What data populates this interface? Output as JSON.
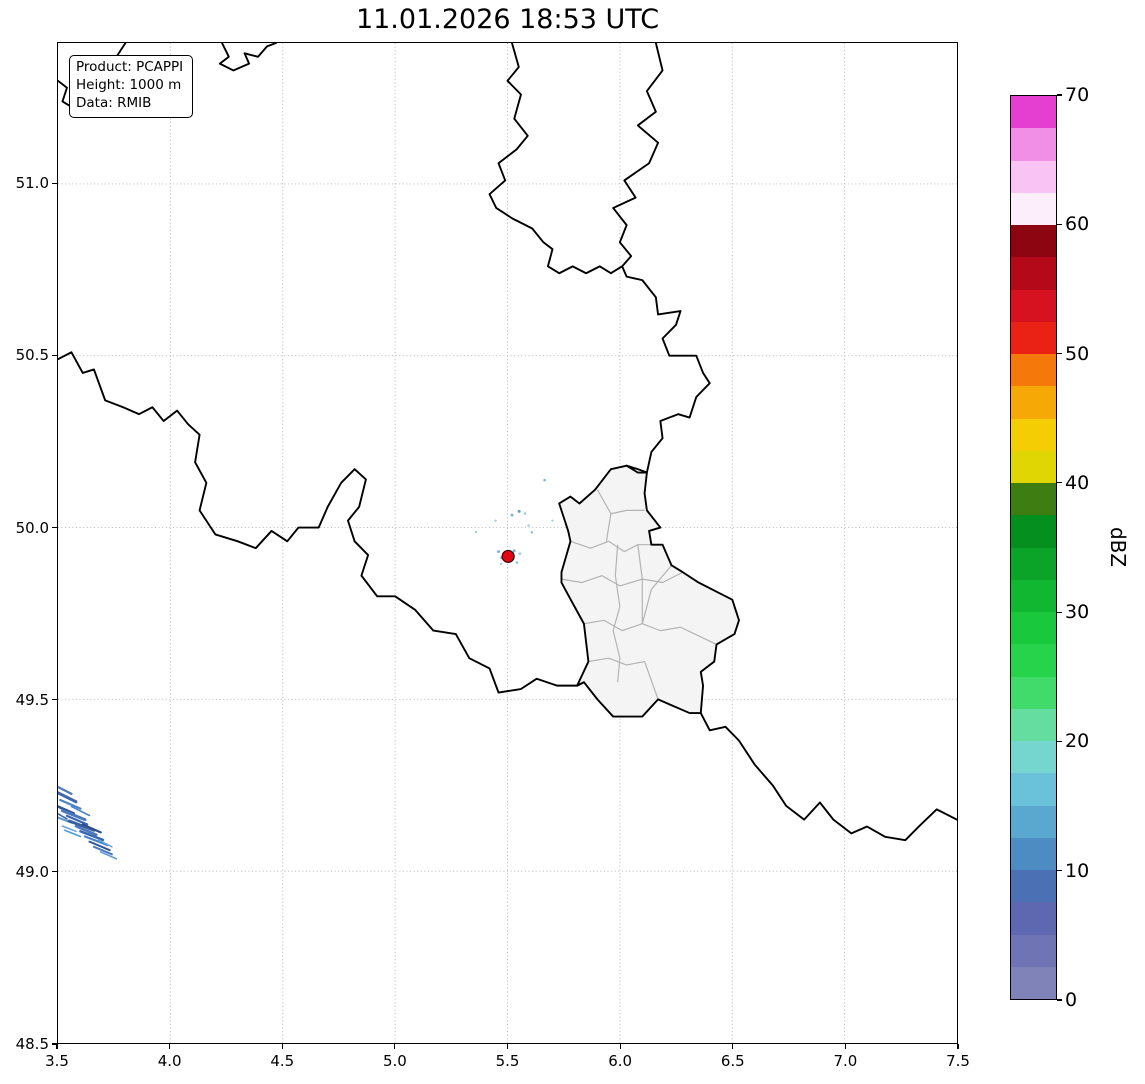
{
  "title": "11.01.2026 18:53 UTC",
  "info_box": {
    "lines": [
      "Product: PCAPPI",
      "Height: 1000 m",
      "Data: RMIB"
    ]
  },
  "chart_data": {
    "type": "heatmap",
    "title": "11.01.2026 18:53 UTC",
    "xlabel": "",
    "ylabel": "",
    "xlim": [
      3.5,
      7.5
    ],
    "ylim": [
      48.5,
      51.41
    ],
    "grid": true,
    "x_ticks": [
      3.5,
      4.0,
      4.5,
      5.0,
      5.5,
      6.0,
      6.5,
      7.0,
      7.5
    ],
    "x_tick_labels": [
      "3.5",
      "4.0",
      "4.5",
      "5.0",
      "5.5",
      "6.0",
      "6.5",
      "7.0",
      "7.5"
    ],
    "y_ticks": [
      48.5,
      49.0,
      49.5,
      50.0,
      50.5,
      51.0
    ],
    "y_tick_labels": [
      "48.5",
      "49.0",
      "49.5",
      "50.0",
      "50.5",
      "51.0"
    ],
    "colorbar": {
      "label": "dBZ",
      "vmin": 0,
      "vmax": 70,
      "ticks": [
        0,
        10,
        20,
        30,
        40,
        50,
        60,
        70
      ],
      "tick_labels": [
        "0",
        "10",
        "20",
        "30",
        "40",
        "50",
        "60",
        "70"
      ],
      "colors": [
        "#8083b8",
        "#6f74b4",
        "#5d68b0",
        "#4c70b4",
        "#4d8cc2",
        "#5aa8d0",
        "#69c2d9",
        "#75d6cf",
        "#66dda0",
        "#41db6c",
        "#26d34b",
        "#19c83c",
        "#11b631",
        "#0ba428",
        "#058f1f",
        "#3d7d11",
        "#dfd604",
        "#f5cd05",
        "#f6a806",
        "#f4790a",
        "#ea2115",
        "#d61120",
        "#b40919",
        "#8c0511",
        "#fdeefc",
        "#f9c4f3",
        "#f18fe6",
        "#e43fd0"
      ]
    },
    "radar_site": {
      "lon": 5.503,
      "lat": 49.916,
      "color": "#e30613",
      "edge": "#300000"
    },
    "echoes": [
      [
        3.5,
        49.245,
        3.56,
        49.225,
        "#4a79bd",
        2.2
      ],
      [
        3.5,
        49.228,
        3.58,
        49.202,
        "#3c67ae",
        3
      ],
      [
        3.51,
        49.207,
        3.6,
        49.182,
        "#4983c6",
        2.2
      ],
      [
        3.5,
        49.188,
        3.57,
        49.168,
        "#2f5598",
        2.6
      ],
      [
        3.52,
        49.176,
        3.62,
        49.15,
        "#4a79bd",
        3
      ],
      [
        3.56,
        49.188,
        3.64,
        49.162,
        "#4983c6",
        1.6
      ],
      [
        3.54,
        49.161,
        3.63,
        49.136,
        "#3c67ae",
        2.2
      ],
      [
        3.5,
        49.156,
        3.56,
        49.141,
        "#5e95cf",
        2
      ],
      [
        3.5,
        49.167,
        3.54,
        49.152,
        "#3c67ae",
        1.6
      ],
      [
        3.55,
        49.146,
        3.66,
        49.119,
        "#39619f",
        3
      ],
      [
        3.58,
        49.131,
        3.67,
        49.106,
        "#4a79bd",
        2.6
      ],
      [
        3.52,
        49.131,
        3.58,
        49.116,
        "#6aa3d6",
        1.6
      ],
      [
        3.53,
        49.119,
        3.6,
        49.101,
        "#4a9ed2",
        1.6
      ],
      [
        3.61,
        49.136,
        3.69,
        49.113,
        "#2c4f8f",
        2.2
      ],
      [
        3.6,
        49.116,
        3.7,
        49.091,
        "#3c67ae",
        2.6
      ],
      [
        3.62,
        49.101,
        3.72,
        49.076,
        "#4983c6",
        2.2
      ],
      [
        3.64,
        49.086,
        3.73,
        49.061,
        "#2f5598",
        2
      ],
      [
        3.66,
        49.071,
        3.74,
        49.049,
        "#4a79bd",
        2
      ],
      [
        3.68,
        49.091,
        3.74,
        49.071,
        "#6aa3d6",
        1.6
      ],
      [
        3.69,
        49.056,
        3.76,
        49.036,
        "#5e95cf",
        1.6
      ]
    ],
    "specks": [
      [
        5.46,
        49.93,
        "#7ab6da",
        1.5
      ],
      [
        5.475,
        49.912,
        "#5d9bcc",
        1.5
      ],
      [
        5.53,
        49.932,
        "#7ab6da",
        1.5
      ],
      [
        5.555,
        49.924,
        "#9fcbe4",
        1.4
      ],
      [
        5.542,
        49.898,
        "#7ab6da",
        1.2
      ],
      [
        5.472,
        49.894,
        "#9fcbe4",
        1.2
      ],
      [
        5.52,
        50.036,
        "#7ab6da",
        1.5
      ],
      [
        5.552,
        50.047,
        "#5d9bcc",
        1.5
      ],
      [
        5.578,
        50.041,
        "#9fcbe4",
        1.3
      ],
      [
        5.608,
        49.986,
        "#7ab6da",
        1.2
      ],
      [
        5.594,
        50.006,
        "#9fcbe4",
        1.2
      ],
      [
        5.447,
        50.02,
        "#9fcbe4",
        1.2
      ],
      [
        5.36,
        49.987,
        "#9fcbe4",
        1.2
      ],
      [
        5.665,
        50.138,
        "#7ab6da",
        1.3
      ],
      [
        5.7,
        50.02,
        "#9fcbe4",
        1.1
      ]
    ],
    "map": {
      "luxembourg_fill": "#f4f4f4",
      "luxembourg_outline": [
        [
          5.84,
          49.55
        ],
        [
          5.9,
          49.5
        ],
        [
          5.97,
          49.45
        ],
        [
          6.04,
          49.45
        ],
        [
          6.1,
          49.45
        ],
        [
          6.17,
          49.5
        ],
        [
          6.24,
          49.48
        ],
        [
          6.31,
          49.46
        ],
        [
          6.36,
          49.46
        ],
        [
          6.37,
          49.54
        ],
        [
          6.36,
          49.58
        ],
        [
          6.42,
          49.61
        ],
        [
          6.43,
          49.66
        ],
        [
          6.51,
          49.69
        ],
        [
          6.53,
          49.73
        ],
        [
          6.5,
          49.79
        ],
        [
          6.44,
          49.81
        ],
        [
          6.35,
          49.84
        ],
        [
          6.28,
          49.87
        ],
        [
          6.23,
          49.89
        ],
        [
          6.19,
          49.95
        ],
        [
          6.14,
          49.95
        ],
        [
          6.13,
          49.99
        ],
        [
          6.18,
          50.0
        ],
        [
          6.12,
          50.05
        ],
        [
          6.11,
          50.1
        ],
        [
          6.12,
          50.16
        ],
        [
          6.08,
          50.16
        ],
        [
          6.03,
          50.18
        ],
        [
          5.96,
          50.17
        ],
        [
          5.89,
          50.11
        ],
        [
          5.82,
          50.07
        ],
        [
          5.78,
          50.09
        ],
        [
          5.73,
          50.07
        ],
        [
          5.77,
          49.99
        ],
        [
          5.78,
          49.96
        ],
        [
          5.74,
          49.87
        ],
        [
          5.74,
          49.84
        ],
        [
          5.79,
          49.78
        ],
        [
          5.84,
          49.72
        ],
        [
          5.86,
          49.61
        ],
        [
          5.81,
          49.54
        ],
        [
          5.84,
          49.55
        ]
      ],
      "luxembourg_cantons": [
        [
          [
            5.78,
            49.96
          ],
          [
            5.87,
            49.94
          ],
          [
            5.95,
            49.96
          ],
          [
            6.02,
            49.93
          ],
          [
            6.08,
            49.95
          ],
          [
            6.14,
            49.95
          ]
        ],
        [
          [
            5.74,
            49.85
          ],
          [
            5.83,
            49.84
          ],
          [
            5.92,
            49.86
          ],
          [
            6.0,
            49.83
          ],
          [
            6.1,
            49.85
          ],
          [
            6.19,
            49.84
          ],
          [
            6.28,
            49.87
          ]
        ],
        [
          [
            5.84,
            49.72
          ],
          [
            5.93,
            49.73
          ],
          [
            6.01,
            49.7
          ],
          [
            6.1,
            49.72
          ],
          [
            6.18,
            49.7
          ],
          [
            6.27,
            49.71
          ],
          [
            6.43,
            49.66
          ]
        ],
        [
          [
            5.86,
            49.61
          ],
          [
            5.95,
            49.62
          ],
          [
            6.03,
            49.6
          ],
          [
            6.11,
            49.61
          ],
          [
            6.17,
            49.5
          ]
        ],
        [
          [
            5.99,
            49.95
          ],
          [
            5.98,
            49.86
          ],
          [
            6.0,
            49.77
          ],
          [
            5.97,
            49.7
          ],
          [
            6.0,
            49.62
          ],
          [
            5.99,
            49.55
          ]
        ],
        [
          [
            6.08,
            49.95
          ],
          [
            6.1,
            49.85
          ],
          [
            6.1,
            49.72
          ]
        ],
        [
          [
            5.9,
            50.11
          ],
          [
            5.96,
            50.04
          ],
          [
            6.03,
            50.05
          ],
          [
            6.11,
            50.05
          ]
        ],
        [
          [
            5.96,
            50.04
          ],
          [
            5.94,
            49.96
          ]
        ],
        [
          [
            6.23,
            49.89
          ],
          [
            6.14,
            49.82
          ],
          [
            6.1,
            49.72
          ]
        ]
      ],
      "country_borders": [
        [
          [
            3.5,
            50.49
          ],
          [
            3.56,
            50.51
          ],
          [
            3.61,
            50.45
          ],
          [
            3.66,
            50.46
          ],
          [
            3.71,
            50.37
          ],
          [
            3.79,
            50.35
          ],
          [
            3.86,
            50.33
          ],
          [
            3.92,
            50.35
          ],
          [
            3.97,
            50.31
          ],
          [
            4.03,
            50.34
          ],
          [
            4.08,
            50.3
          ],
          [
            4.13,
            50.27
          ],
          [
            4.11,
            50.19
          ],
          [
            4.16,
            50.13
          ],
          [
            4.13,
            50.05
          ],
          [
            4.2,
            49.98
          ],
          [
            4.3,
            49.96
          ],
          [
            4.38,
            49.94
          ],
          [
            4.45,
            49.99
          ],
          [
            4.52,
            49.96
          ],
          [
            4.57,
            50.0
          ],
          [
            4.66,
            50.0
          ],
          [
            4.7,
            50.06
          ],
          [
            4.76,
            50.13
          ],
          [
            4.82,
            50.17
          ],
          [
            4.87,
            50.14
          ],
          [
            4.84,
            50.06
          ],
          [
            4.79,
            50.02
          ],
          [
            4.82,
            49.96
          ],
          [
            4.88,
            49.92
          ],
          [
            4.85,
            49.86
          ],
          [
            4.92,
            49.8
          ],
          [
            5.0,
            49.8
          ],
          [
            5.09,
            49.76
          ],
          [
            5.17,
            49.7
          ],
          [
            5.27,
            49.69
          ],
          [
            5.33,
            49.62
          ],
          [
            5.42,
            49.59
          ],
          [
            5.46,
            49.52
          ],
          [
            5.56,
            49.53
          ],
          [
            5.63,
            49.56
          ],
          [
            5.72,
            49.54
          ],
          [
            5.81,
            49.54
          ],
          [
            5.84,
            49.55
          ]
        ],
        [
          [
            6.03,
            50.18
          ],
          [
            6.08,
            50.17
          ],
          [
            6.12,
            50.16
          ],
          [
            6.14,
            50.22
          ],
          [
            6.19,
            50.26
          ],
          [
            6.18,
            50.31
          ],
          [
            6.26,
            50.33
          ],
          [
            6.31,
            50.32
          ],
          [
            6.34,
            50.38
          ],
          [
            6.4,
            50.42
          ],
          [
            6.37,
            50.45
          ],
          [
            6.34,
            50.5
          ],
          [
            6.22,
            50.5
          ],
          [
            6.19,
            50.55
          ],
          [
            6.25,
            50.59
          ],
          [
            6.27,
            50.63
          ],
          [
            6.17,
            50.62
          ],
          [
            6.16,
            50.67
          ],
          [
            6.1,
            50.72
          ],
          [
            6.03,
            50.73
          ],
          [
            6.01,
            50.76
          ]
        ],
        [
          [
            5.52,
            51.41
          ],
          [
            5.55,
            51.34
          ],
          [
            5.5,
            51.3
          ],
          [
            5.56,
            51.26
          ],
          [
            5.53,
            51.19
          ],
          [
            5.59,
            51.14
          ],
          [
            5.54,
            51.1
          ],
          [
            5.46,
            51.06
          ],
          [
            5.49,
            51.01
          ],
          [
            5.42,
            50.97
          ],
          [
            5.45,
            50.93
          ],
          [
            5.52,
            50.9
          ],
          [
            5.61,
            50.87
          ],
          [
            5.66,
            50.83
          ],
          [
            5.7,
            50.81
          ],
          [
            5.68,
            50.76
          ],
          [
            5.73,
            50.74
          ],
          [
            5.79,
            50.76
          ],
          [
            5.85,
            50.74
          ],
          [
            5.91,
            50.76
          ],
          [
            5.96,
            50.74
          ],
          [
            6.01,
            50.76
          ]
        ],
        [
          [
            6.16,
            51.41
          ],
          [
            6.19,
            51.33
          ],
          [
            6.12,
            51.27
          ],
          [
            6.16,
            51.21
          ],
          [
            6.08,
            51.17
          ],
          [
            6.17,
            51.12
          ],
          [
            6.13,
            51.06
          ],
          [
            6.02,
            51.01
          ],
          [
            6.07,
            50.96
          ],
          [
            5.97,
            50.93
          ],
          [
            6.03,
            50.88
          ],
          [
            6.0,
            50.83
          ],
          [
            6.05,
            50.79
          ],
          [
            6.01,
            50.76
          ]
        ],
        [
          [
            4.23,
            51.41
          ],
          [
            4.26,
            51.37
          ],
          [
            4.22,
            51.35
          ],
          [
            4.28,
            51.33
          ],
          [
            4.35,
            51.35
          ],
          [
            4.33,
            51.38
          ],
          [
            4.39,
            51.37
          ],
          [
            4.43,
            51.4
          ],
          [
            4.47,
            51.41
          ]
        ],
        [
          [
            6.36,
            49.46
          ],
          [
            6.4,
            49.41
          ],
          [
            6.47,
            49.42
          ],
          [
            6.53,
            49.38
          ],
          [
            6.6,
            49.31
          ],
          [
            6.68,
            49.25
          ],
          [
            6.74,
            49.19
          ],
          [
            6.82,
            49.15
          ],
          [
            6.89,
            49.2
          ],
          [
            6.95,
            49.15
          ],
          [
            7.03,
            49.11
          ],
          [
            7.1,
            49.13
          ],
          [
            7.18,
            49.1
          ],
          [
            7.27,
            49.09
          ],
          [
            7.33,
            49.13
          ],
          [
            7.41,
            49.18
          ],
          [
            7.5,
            49.15
          ]
        ],
        [
          [
            3.5,
            51.3
          ],
          [
            3.54,
            51.28
          ],
          [
            3.52,
            51.24
          ],
          [
            3.57,
            51.22
          ],
          [
            3.56,
            51.26
          ],
          [
            3.61,
            51.27
          ],
          [
            3.64,
            51.31
          ],
          [
            3.7,
            51.33
          ],
          [
            3.76,
            51.37
          ],
          [
            3.8,
            51.41
          ]
        ]
      ]
    }
  }
}
